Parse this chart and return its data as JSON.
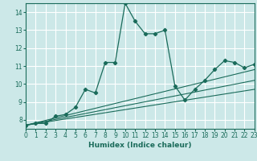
{
  "xlabel": "Humidex (Indice chaleur)",
  "bg_color": "#cce8e8",
  "grid_color": "#ffffff",
  "line_color": "#1a6b5a",
  "marker_color": "#1a6b5a",
  "xlim": [
    0,
    23
  ],
  "ylim": [
    7.5,
    14.5
  ],
  "xticks": [
    0,
    1,
    2,
    3,
    4,
    5,
    6,
    7,
    8,
    9,
    10,
    11,
    12,
    13,
    14,
    15,
    16,
    17,
    18,
    19,
    20,
    21,
    22,
    23
  ],
  "yticks": [
    8,
    9,
    10,
    11,
    12,
    13,
    14
  ],
  "series": [
    [
      0,
      7.7
    ],
    [
      1,
      7.8
    ],
    [
      2,
      7.8
    ],
    [
      3,
      8.2
    ],
    [
      4,
      8.3
    ],
    [
      5,
      8.7
    ],
    [
      6,
      9.7
    ],
    [
      7,
      9.5
    ],
    [
      8,
      11.2
    ],
    [
      9,
      11.2
    ],
    [
      10,
      14.5
    ],
    [
      11,
      13.5
    ],
    [
      12,
      12.8
    ],
    [
      13,
      12.8
    ],
    [
      14,
      13.0
    ],
    [
      15,
      9.9
    ],
    [
      16,
      9.1
    ],
    [
      17,
      9.7
    ],
    [
      18,
      10.2
    ],
    [
      19,
      10.8
    ],
    [
      20,
      11.3
    ],
    [
      21,
      11.2
    ],
    [
      22,
      10.9
    ],
    [
      23,
      11.1
    ]
  ],
  "line1": [
    [
      0,
      7.7
    ],
    [
      23,
      9.7
    ]
  ],
  "line2": [
    [
      0,
      7.7
    ],
    [
      23,
      10.2
    ]
  ],
  "line3": [
    [
      0,
      7.7
    ],
    [
      23,
      10.8
    ]
  ]
}
